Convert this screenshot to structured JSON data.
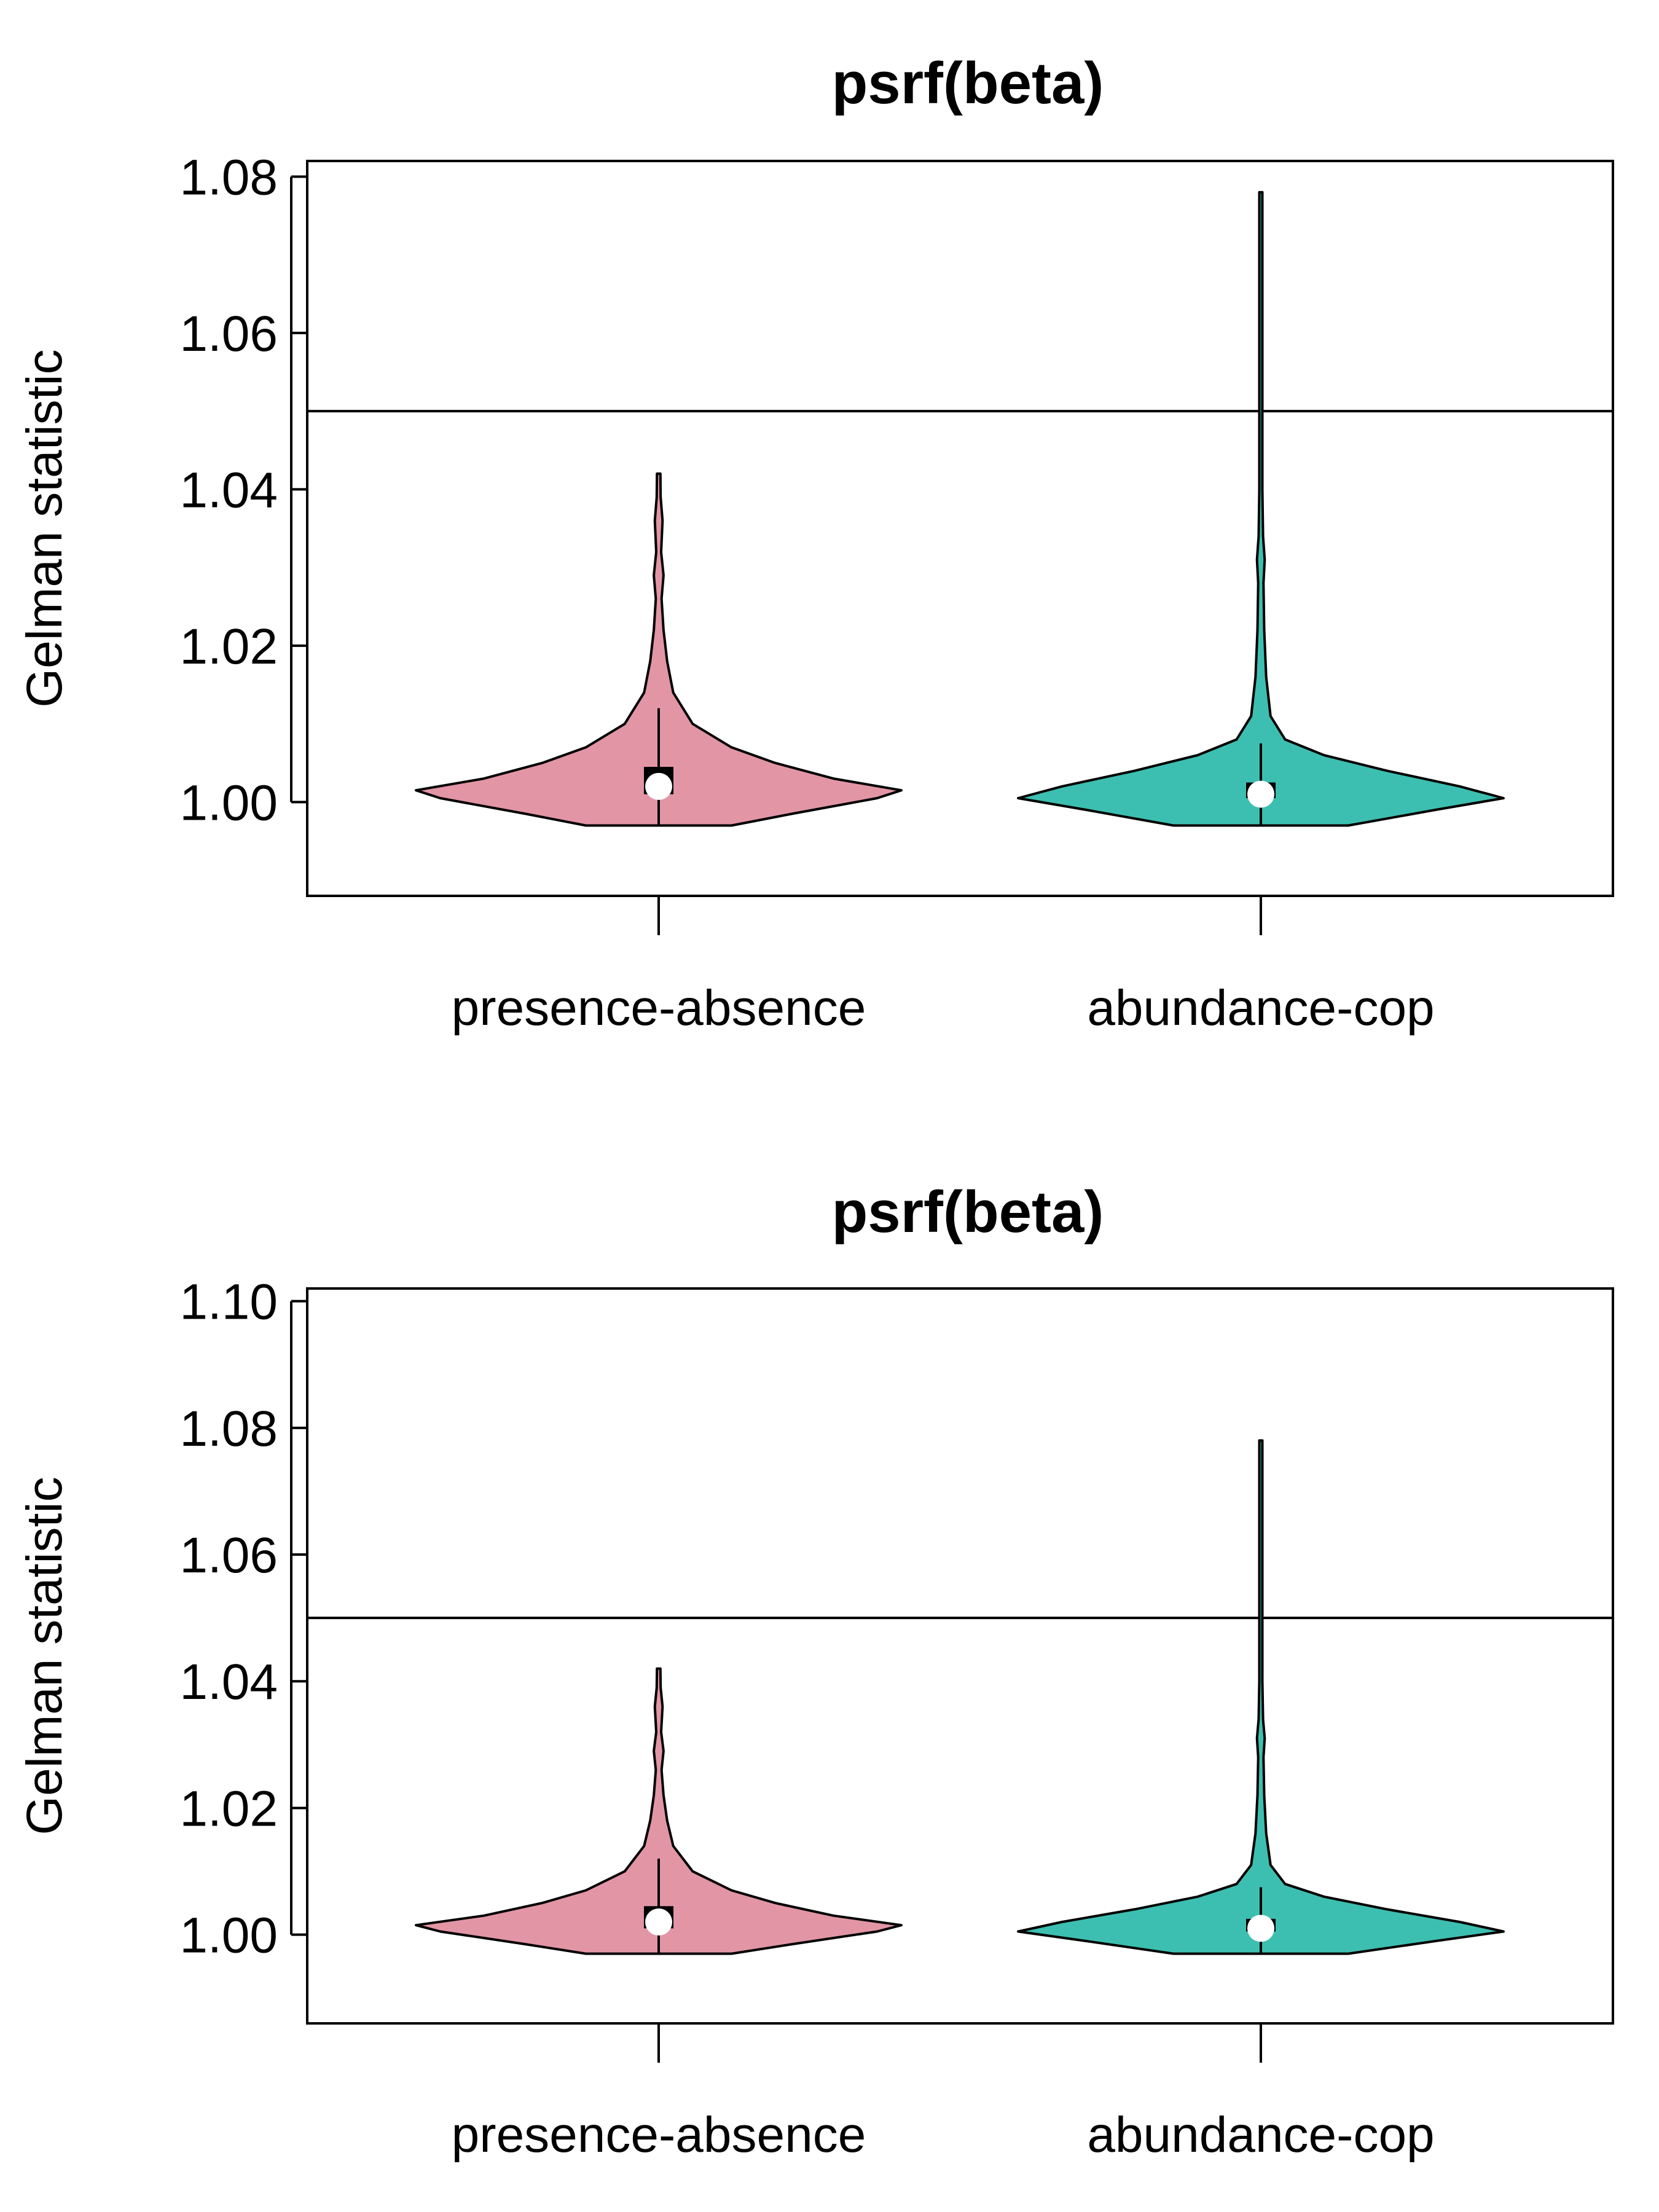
{
  "chart_data": [
    {
      "type": "violin",
      "title": "psrf(beta)",
      "ylabel": "Gelman statistic",
      "xlabel": "",
      "ylim": [
        0.988,
        1.082
      ],
      "yticks": [
        "1.00",
        "1.02",
        "1.04",
        "1.06",
        "1.08"
      ],
      "yticks_values": [
        1.0,
        1.02,
        1.04,
        1.06,
        1.08
      ],
      "reference_line": 1.05,
      "categories": [
        "presence-absence",
        "abundance-cop"
      ],
      "series": [
        {
          "color": "#e295a5",
          "min": 0.997,
          "max": 1.042,
          "q1": 1.001,
          "q3": 1.0045,
          "median": 1.002,
          "whisker_low": 0.997,
          "whisker_high": 1.012,
          "density": [
            [
              0.997,
              0.3
            ],
            [
              0.9985,
              0.55
            ],
            [
              1.0005,
              0.9
            ],
            [
              1.0015,
              1.0
            ],
            [
              1.003,
              0.72
            ],
            [
              1.005,
              0.48
            ],
            [
              1.007,
              0.3
            ],
            [
              1.01,
              0.14
            ],
            [
              1.014,
              0.06
            ],
            [
              1.018,
              0.035
            ],
            [
              1.022,
              0.02
            ],
            [
              1.026,
              0.012
            ],
            [
              1.029,
              0.02
            ],
            [
              1.032,
              0.01
            ],
            [
              1.036,
              0.016
            ],
            [
              1.039,
              0.008
            ],
            [
              1.042,
              0.007
            ]
          ]
        },
        {
          "color": "#3cbfb0",
          "min": 0.997,
          "max": 1.078,
          "q1": 1.0005,
          "q3": 1.0025,
          "median": 1.001,
          "whisker_low": 0.997,
          "whisker_high": 1.0075,
          "density": [
            [
              0.997,
              0.36
            ],
            [
              0.999,
              0.72
            ],
            [
              1.0005,
              1.0
            ],
            [
              1.002,
              0.82
            ],
            [
              1.004,
              0.52
            ],
            [
              1.006,
              0.26
            ],
            [
              1.008,
              0.1
            ],
            [
              1.011,
              0.04
            ],
            [
              1.016,
              0.022
            ],
            [
              1.022,
              0.014
            ],
            [
              1.028,
              0.011
            ],
            [
              1.031,
              0.016
            ],
            [
              1.034,
              0.009
            ],
            [
              1.04,
              0.006
            ],
            [
              1.046,
              0.005
            ],
            [
              1.05,
              0.004
            ],
            [
              1.06,
              0.003
            ],
            [
              1.078,
              0.003
            ]
          ]
        }
      ]
    },
    {
      "type": "violin",
      "title": "psrf(beta)",
      "ylabel": "Gelman statistic",
      "xlabel": "",
      "ylim": [
        0.986,
        1.102
      ],
      "yticks": [
        "1.00",
        "1.02",
        "1.04",
        "1.06",
        "1.08",
        "1.10"
      ],
      "yticks_values": [
        1.0,
        1.02,
        1.04,
        1.06,
        1.08,
        1.1
      ],
      "reference_line": 1.05,
      "categories": [
        "presence-absence",
        "abundance-cop"
      ],
      "series": [
        {
          "color": "#e295a5",
          "min": 0.997,
          "max": 1.042,
          "q1": 1.001,
          "q3": 1.0045,
          "median": 1.002,
          "whisker_low": 0.997,
          "whisker_high": 1.012,
          "density": [
            [
              0.997,
              0.3
            ],
            [
              0.9985,
              0.55
            ],
            [
              1.0005,
              0.9
            ],
            [
              1.0015,
              1.0
            ],
            [
              1.003,
              0.72
            ],
            [
              1.005,
              0.48
            ],
            [
              1.007,
              0.3
            ],
            [
              1.01,
              0.14
            ],
            [
              1.014,
              0.06
            ],
            [
              1.018,
              0.035
            ],
            [
              1.022,
              0.02
            ],
            [
              1.026,
              0.012
            ],
            [
              1.029,
              0.02
            ],
            [
              1.032,
              0.01
            ],
            [
              1.036,
              0.016
            ],
            [
              1.039,
              0.008
            ],
            [
              1.042,
              0.007
            ]
          ]
        },
        {
          "color": "#3cbfb0",
          "min": 0.997,
          "max": 1.078,
          "q1": 1.0005,
          "q3": 1.0025,
          "median": 1.001,
          "whisker_low": 0.997,
          "whisker_high": 1.0075,
          "density": [
            [
              0.997,
              0.36
            ],
            [
              0.999,
              0.72
            ],
            [
              1.0005,
              1.0
            ],
            [
              1.002,
              0.82
            ],
            [
              1.004,
              0.52
            ],
            [
              1.006,
              0.26
            ],
            [
              1.008,
              0.1
            ],
            [
              1.011,
              0.04
            ],
            [
              1.016,
              0.022
            ],
            [
              1.022,
              0.014
            ],
            [
              1.028,
              0.011
            ],
            [
              1.031,
              0.016
            ],
            [
              1.034,
              0.009
            ],
            [
              1.04,
              0.006
            ],
            [
              1.046,
              0.005
            ],
            [
              1.05,
              0.004
            ],
            [
              1.06,
              0.003
            ],
            [
              1.078,
              0.003
            ]
          ]
        }
      ]
    }
  ]
}
